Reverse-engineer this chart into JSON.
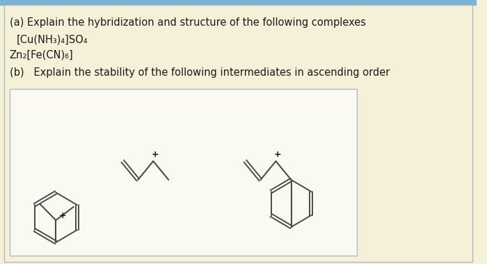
{
  "bg_color": "#f5f0d8",
  "top_bar_color": "#7ab3d4",
  "border_color": "#b0b8c0",
  "text_color": "#1a1a1a",
  "line_color": "#4a4a4a",
  "struct_box_color": "#fafaf2",
  "title_a": "(a) Explain the hybridization and structure of the following complexes",
  "formula1": "[Cu(NH₃)₄]SO₄",
  "formula2": "Zn₂[Fe(CN)₆]",
  "title_b": "(b)   Explain the stability of the following intermediates in ascending order",
  "figsize": [
    7.0,
    3.8
  ],
  "dpi": 100
}
